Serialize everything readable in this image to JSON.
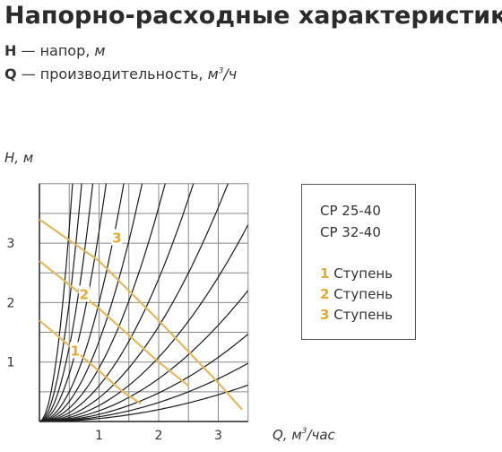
{
  "title": "Напорно-расходные характеристики",
  "legend": {
    "h_symbol": "H",
    "h_text": " — напор, ",
    "h_unit": "м",
    "q_symbol": "Q",
    "q_text": " — производительность, ",
    "q_unit_base": "м",
    "q_unit_sup": "3",
    "q_unit_tail": "/ч"
  },
  "box": {
    "models": [
      "CP 25-40",
      "CP 32-40"
    ],
    "stages": [
      {
        "num": "1",
        "label": " Ступень"
      },
      {
        "num": "2",
        "label": " Ступень"
      },
      {
        "num": "3",
        "label": " Ступень"
      }
    ]
  },
  "colors": {
    "curve": "#e6b85c",
    "grid": "#888888",
    "system": "#1a1a1a",
    "stage_text": "#e6a92e"
  },
  "chart_data": {
    "type": "line",
    "ylabel_main": "H, ",
    "ylabel_unit": "м",
    "xlabel_main": "Q, ",
    "xlabel_unit_base": "м",
    "xlabel_unit_sup": "3",
    "xlabel_unit_tail": "/час",
    "xlim": [
      0,
      3.5
    ],
    "ylim": [
      0,
      4
    ],
    "x_ticks": [
      1,
      2,
      3
    ],
    "y_ticks": [
      1,
      2,
      3
    ],
    "grid": true,
    "series": [
      {
        "name": "1",
        "points": [
          [
            0,
            1.7
          ],
          [
            1,
            0.85
          ],
          [
            1.4,
            0.5
          ],
          [
            1.7,
            0.3
          ]
        ]
      },
      {
        "name": "2",
        "points": [
          [
            0,
            2.7
          ],
          [
            1,
            1.9
          ],
          [
            2,
            1.0
          ],
          [
            2.5,
            0.6
          ]
        ]
      },
      {
        "name": "3",
        "points": [
          [
            0,
            3.4
          ],
          [
            1,
            2.7
          ],
          [
            2,
            1.7
          ],
          [
            3,
            0.65
          ],
          [
            3.4,
            0.2
          ]
        ]
      }
    ],
    "system_curve_coefficients": [
      0.05,
      0.08,
      0.12,
      0.18,
      0.27,
      0.4,
      0.6,
      0.9,
      1.35,
      2.0,
      3.2,
      5.0,
      8.0,
      13.0
    ],
    "stage_labels_at": [
      [
        0.6,
        1.2
      ],
      [
        0.75,
        2.15
      ],
      [
        1.3,
        3.1
      ]
    ]
  }
}
